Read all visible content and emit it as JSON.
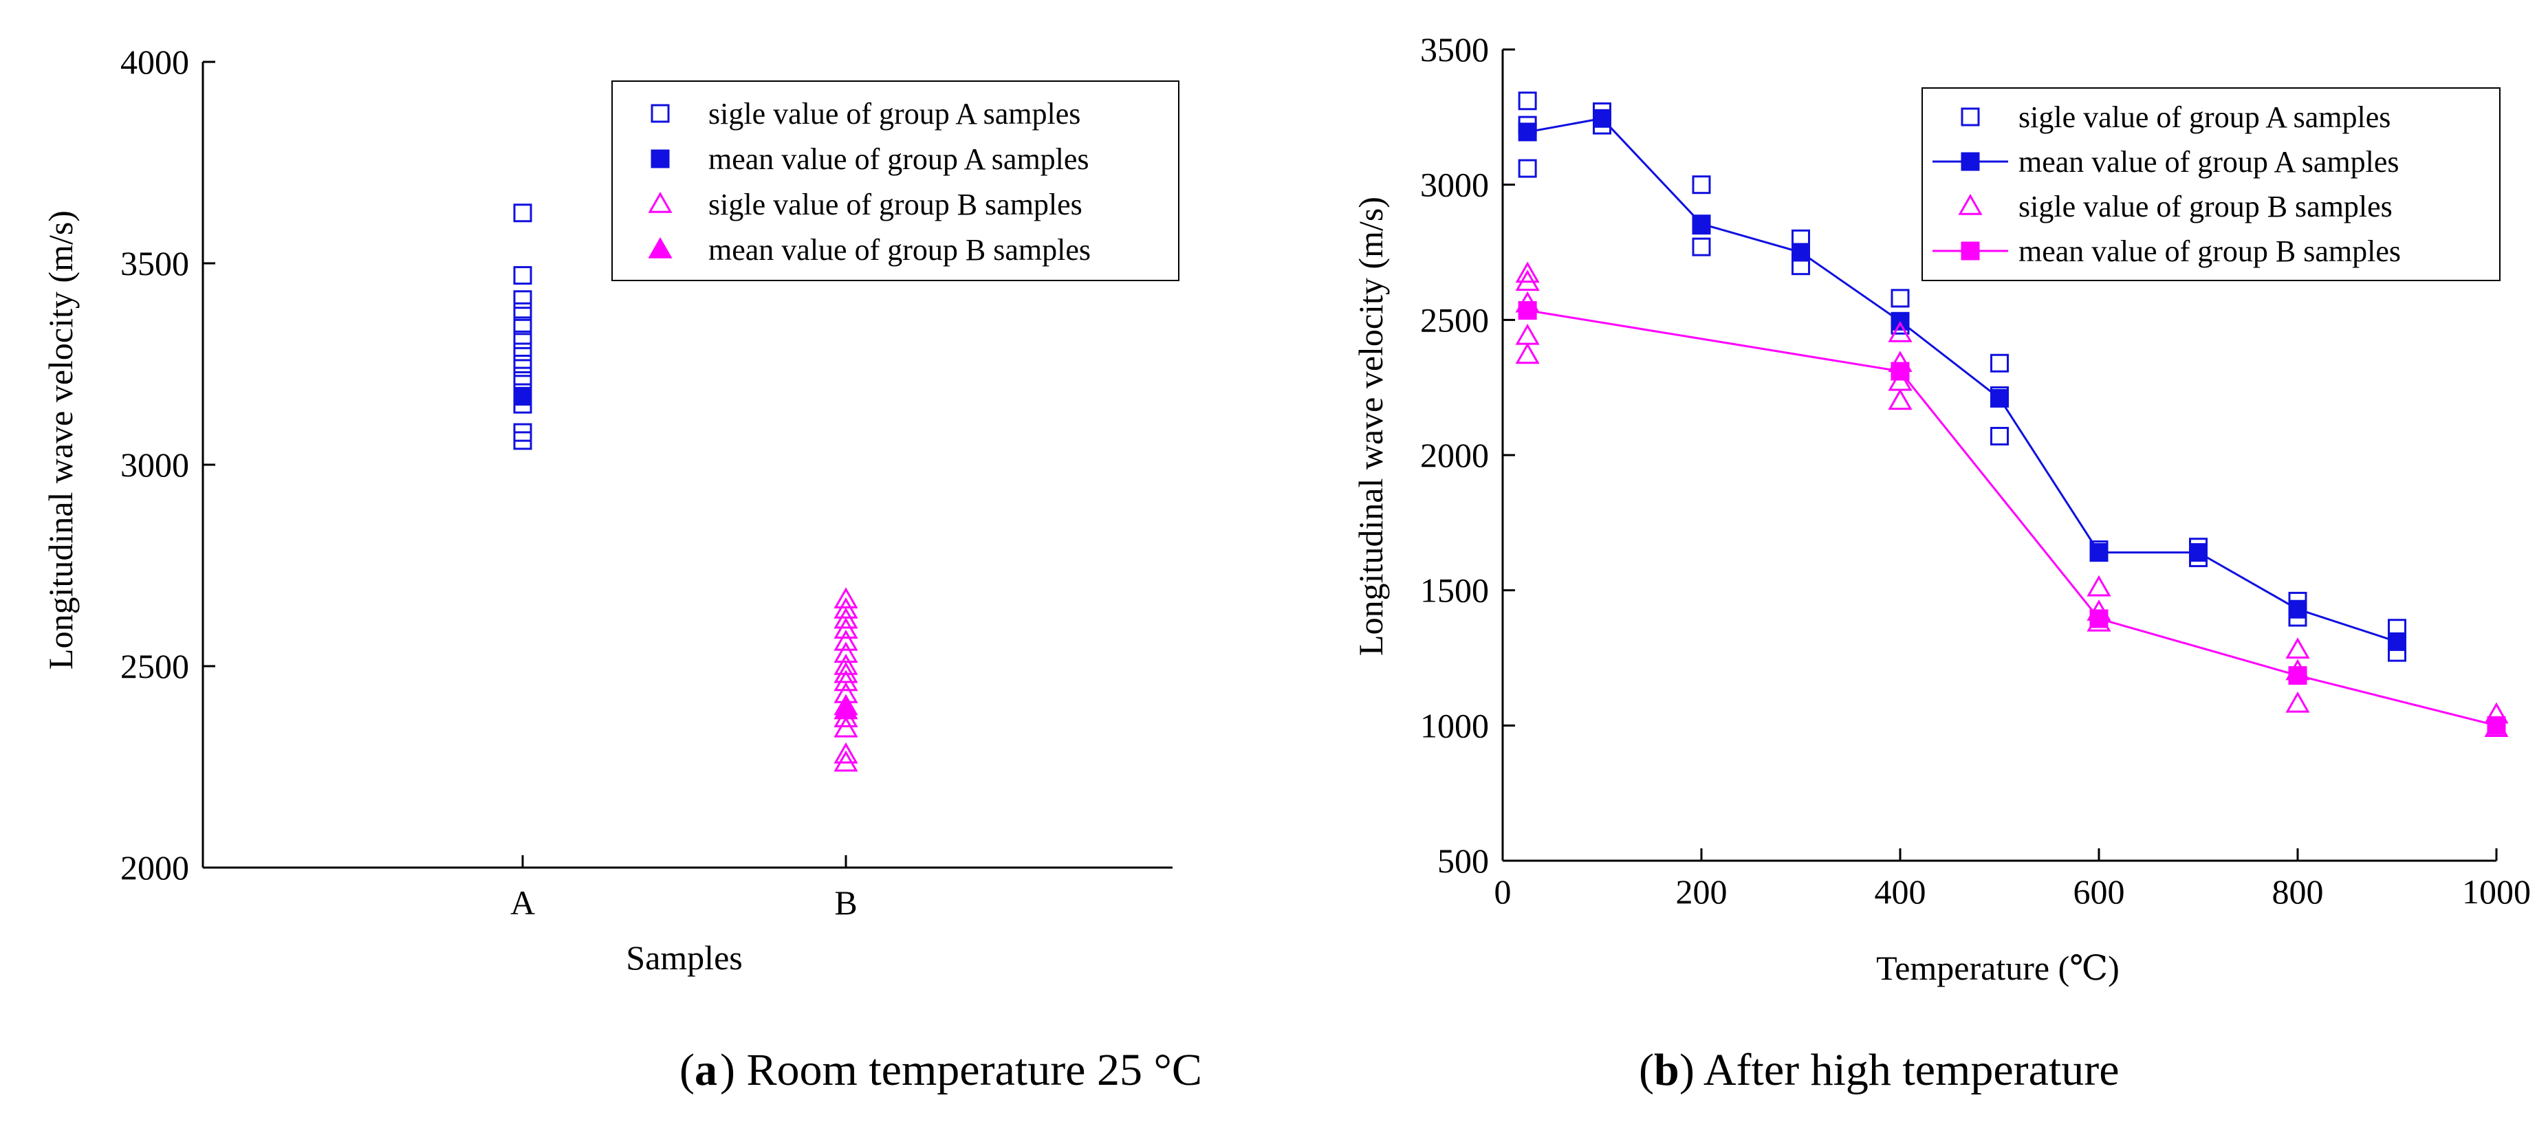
{
  "colors": {
    "groupA": "#1010e0",
    "groupB": "#ff00ff",
    "axis": "#000000"
  },
  "chart_data": [
    {
      "type": "scatter",
      "caption": {
        "letter": "a",
        "text": ") Room temperature 25 °C"
      },
      "xlabel": "Samples",
      "ylabel": "Longitudinal wave velocity (m/s)",
      "categories": [
        "A",
        "B"
      ],
      "ylim": [
        2000,
        4000
      ],
      "yticks": [
        2000,
        2500,
        3000,
        3500,
        4000
      ],
      "legend_position": "top-right",
      "series": [
        {
          "name": "sigle value of group A samples",
          "marker": "open-square",
          "color": "groupA",
          "category": "A",
          "values": [
            3625,
            3470,
            3410,
            3380,
            3345,
            3310,
            3280,
            3250,
            3220,
            3200,
            3170,
            3150,
            3080,
            3060
          ]
        },
        {
          "name": "mean value of group A samples",
          "marker": "filled-square",
          "color": "groupA",
          "category": "A",
          "values": [
            3170
          ]
        },
        {
          "name": "sigle value of group B samples",
          "marker": "open-triangle",
          "color": "groupB",
          "category": "B",
          "values": [
            2665,
            2640,
            2615,
            2590,
            2560,
            2530,
            2500,
            2480,
            2460,
            2430,
            2400,
            2370,
            2345,
            2280,
            2260
          ]
        },
        {
          "name": "mean value of group B samples",
          "marker": "filled-triangle",
          "color": "groupB",
          "category": "B",
          "values": [
            2390
          ]
        }
      ]
    },
    {
      "type": "line",
      "caption": {
        "letter": "b",
        "text": ") After high temperature"
      },
      "xlabel": "Temperature (℃)",
      "ylabel": "Longitudinal wave velocity (m/s)",
      "xlim": [
        0,
        1000
      ],
      "xticks": [
        0,
        200,
        400,
        600,
        800,
        1000
      ],
      "ylim": [
        500,
        3500
      ],
      "yticks": [
        500,
        1000,
        1500,
        2000,
        2500,
        3000,
        3500
      ],
      "legend_position": "top-right",
      "series": [
        {
          "name": "sigle value of group A samples",
          "marker": "open-square",
          "color": "groupA",
          "line": false,
          "points": [
            [
              25,
              3310
            ],
            [
              25,
              3220
            ],
            [
              25,
              3060
            ],
            [
              100,
              3270
            ],
            [
              100,
              3220
            ],
            [
              200,
              3000
            ],
            [
              200,
              2850
            ],
            [
              200,
              2770
            ],
            [
              300,
              2800
            ],
            [
              300,
              2700
            ],
            [
              400,
              2580
            ],
            [
              400,
              2480
            ],
            [
              500,
              2340
            ],
            [
              500,
              2220
            ],
            [
              500,
              2070
            ],
            [
              600,
              1650
            ],
            [
              600,
              1640
            ],
            [
              700,
              1660
            ],
            [
              700,
              1620
            ],
            [
              800,
              1460
            ],
            [
              800,
              1400
            ],
            [
              900,
              1360
            ],
            [
              900,
              1270
            ]
          ]
        },
        {
          "name": "mean value of group A samples",
          "marker": "filled-square",
          "color": "groupA",
          "line": true,
          "points": [
            [
              25,
              3195
            ],
            [
              100,
              3245
            ],
            [
              200,
              2855
            ],
            [
              300,
              2750
            ],
            [
              400,
              2495
            ],
            [
              500,
              2210
            ],
            [
              600,
              1640
            ],
            [
              700,
              1640
            ],
            [
              800,
              1430
            ],
            [
              900,
              1310
            ]
          ]
        },
        {
          "name": "sigle value of group B samples",
          "marker": "open-triangle",
          "color": "groupB",
          "line": false,
          "points": [
            [
              25,
              2670
            ],
            [
              25,
              2640
            ],
            [
              25,
              2560
            ],
            [
              25,
              2440
            ],
            [
              25,
              2370
            ],
            [
              400,
              2450
            ],
            [
              400,
              2340
            ],
            [
              400,
              2270
            ],
            [
              400,
              2200
            ],
            [
              600,
              1510
            ],
            [
              600,
              1420
            ],
            [
              600,
              1380
            ],
            [
              800,
              1280
            ],
            [
              800,
              1200
            ],
            [
              800,
              1080
            ],
            [
              1000,
              1040
            ],
            [
              1000,
              990
            ]
          ]
        },
        {
          "name": "mean value of group B samples",
          "marker": "filled-square",
          "color": "groupB",
          "line": true,
          "points": [
            [
              25,
              2535
            ],
            [
              400,
              2310
            ],
            [
              600,
              1395
            ],
            [
              800,
              1185
            ],
            [
              1000,
              1000
            ]
          ]
        }
      ]
    }
  ]
}
